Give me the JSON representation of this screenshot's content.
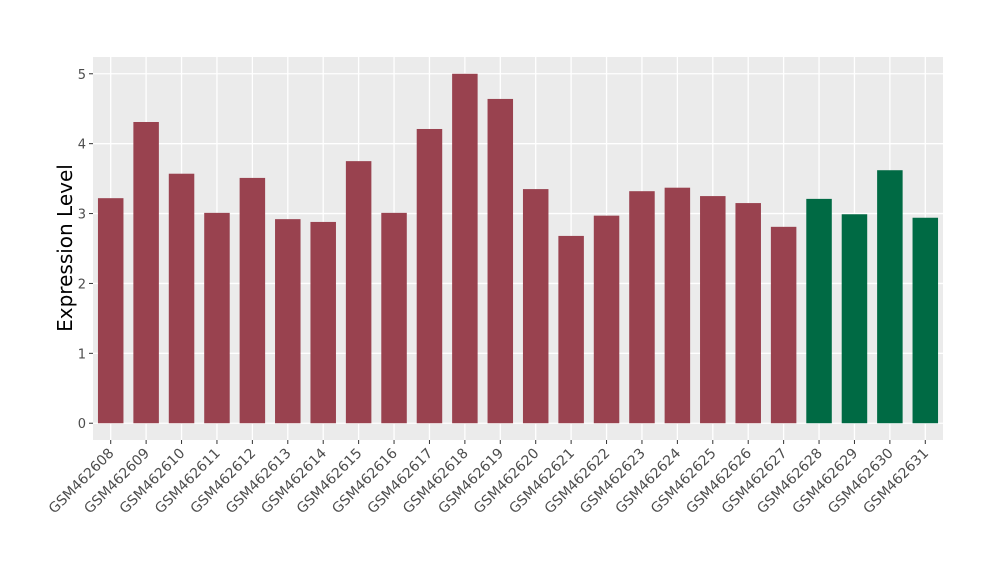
{
  "chart_data": {
    "type": "bar",
    "y_label": "Expression Level",
    "categories": [
      "GSM462608",
      "GSM462609",
      "GSM462610",
      "GSM462611",
      "GSM462612",
      "GSM462613",
      "GSM462614",
      "GSM462615",
      "GSM462616",
      "GSM462617",
      "GSM462618",
      "GSM462619",
      "GSM462620",
      "GSM462621",
      "GSM462622",
      "GSM462623",
      "GSM462624",
      "GSM462625",
      "GSM462626",
      "GSM462627",
      "GSM462628",
      "GSM462629",
      "GSM462630",
      "GSM462631"
    ],
    "values": [
      3.22,
      4.31,
      3.57,
      3.01,
      3.51,
      2.92,
      2.88,
      3.75,
      3.01,
      4.21,
      5.0,
      4.64,
      3.35,
      2.68,
      2.97,
      3.32,
      3.37,
      3.25,
      3.15,
      2.81,
      3.21,
      2.99,
      3.62,
      2.94
    ],
    "colors": [
      "#99424f",
      "#99424f",
      "#99424f",
      "#99424f",
      "#99424f",
      "#99424f",
      "#99424f",
      "#99424f",
      "#99424f",
      "#99424f",
      "#99424f",
      "#99424f",
      "#99424f",
      "#99424f",
      "#99424f",
      "#99424f",
      "#99424f",
      "#99424f",
      "#99424f",
      "#99424f",
      "#006a44",
      "#006a44",
      "#006a44",
      "#006a44"
    ],
    "ylim": [
      -0.24,
      5.24
    ],
    "yticks": [
      0,
      1,
      2,
      3,
      4,
      5
    ],
    "grid": true
  }
}
